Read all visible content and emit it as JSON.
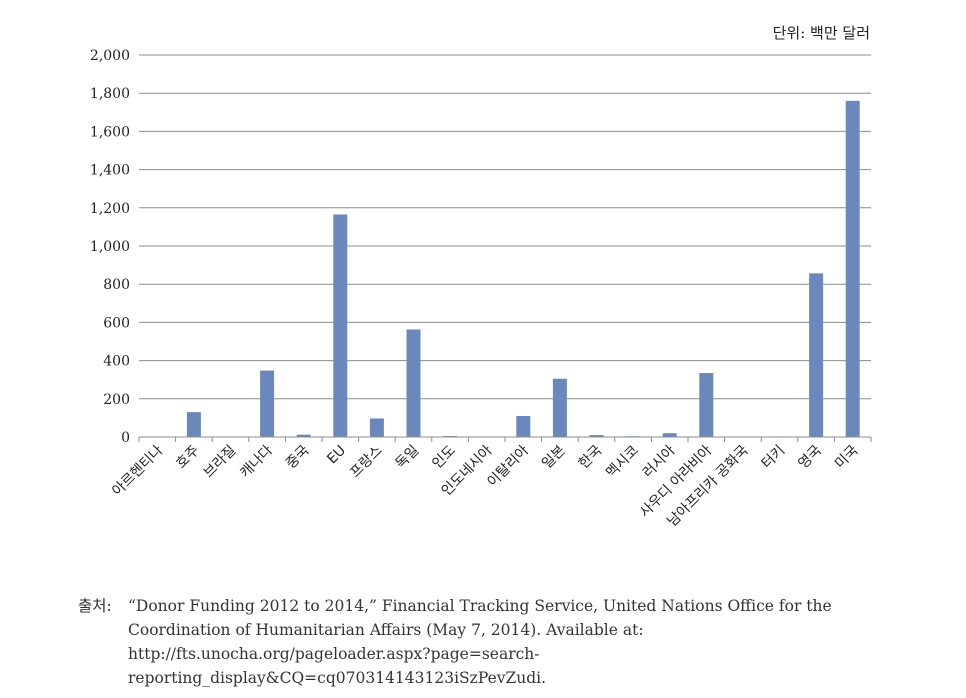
{
  "unit_label": "단위: 백만 달러",
  "source": {
    "label": "출처:",
    "text": "“Donor Funding 2012 to 2014,” Financial Tracking Service, United Nations Office for the Coordination of Humanitarian Affairs (May 7, 2014). Available at: http://fts.unocha.org/pageloader.aspx?page=search-reporting_display&CQ=cq070314143123iSzPevZudi."
  },
  "colors": {
    "bar": "#6b88bd",
    "grid": "#8c8c8c"
  },
  "chart_data": {
    "type": "bar",
    "categories": [
      "아르헨티나",
      "호주",
      "브라질",
      "캐나다",
      "중국",
      "EU",
      "프랑스",
      "독일",
      "인도",
      "인도네시아",
      "이탈리아",
      "일본",
      "한국",
      "멕시코",
      "러시아",
      "사우디 아라비아",
      "남아프리카 공화국",
      "터키",
      "영국",
      "미국"
    ],
    "values": [
      0,
      130,
      0,
      348,
      12,
      1165,
      97,
      563,
      5,
      0,
      110,
      305,
      10,
      4,
      20,
      335,
      2,
      3,
      857,
      1760
    ],
    "yticks": [
      "0",
      "200",
      "400",
      "600",
      "800",
      "1,000",
      "1,200",
      "1,400",
      "1,600",
      "1,800",
      "2,000"
    ],
    "ylim": [
      0,
      2000
    ],
    "grid": true,
    "legend": "none"
  }
}
